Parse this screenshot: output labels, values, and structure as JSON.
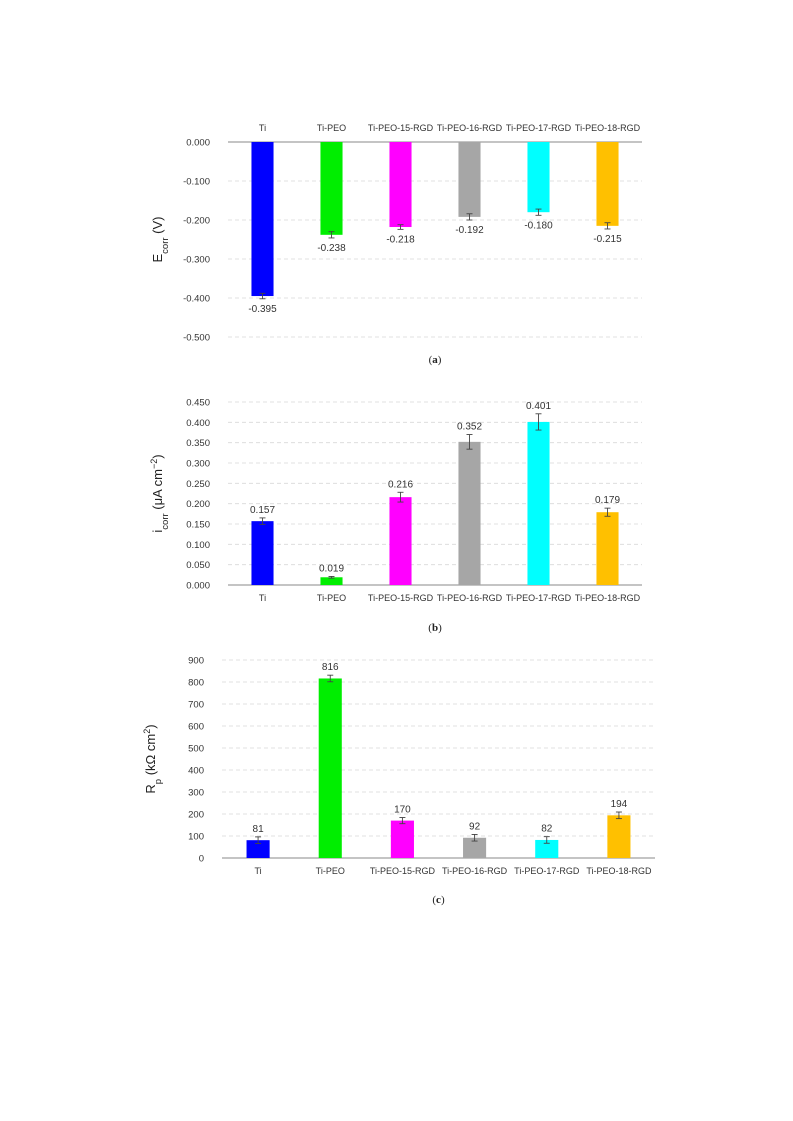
{
  "chart_data": [
    {
      "type": "bar",
      "panel": "a",
      "caption_letter": "a",
      "categories": [
        "Ti",
        "Ti-PEO",
        "Ti-PEO-15-RGD",
        "Ti-PEO-16-RGD",
        "Ti-PEO-17-RGD",
        "Ti-PEO-18-RGD"
      ],
      "values": [
        -0.395,
        -0.238,
        -0.218,
        -0.192,
        -0.18,
        -0.215
      ],
      "value_labels": [
        "-0.395",
        "-0.238",
        "-0.218",
        "-0.192",
        "-0.180",
        "-0.215"
      ],
      "errors": [
        0.007,
        0.008,
        0.006,
        0.008,
        0.008,
        0.008
      ],
      "ylabel_main": "E",
      "ylabel_sub": "corr",
      "ylabel_tail": " (V)",
      "ylim": [
        -0.5,
        0
      ],
      "yticks": [
        0,
        -0.1,
        -0.2,
        -0.3,
        -0.4,
        -0.5
      ],
      "ytick_labels": [
        "0.000",
        "-0.100",
        "-0.200",
        "-0.300",
        "-0.400",
        "-0.500"
      ],
      "category_axis": "top",
      "grid": true
    },
    {
      "type": "bar",
      "panel": "b",
      "caption_letter": "b",
      "categories": [
        "Ti",
        "Ti-PEO",
        "Ti-PEO-15-RGD",
        "Ti-PEO-16-RGD",
        "Ti-PEO-17-RGD",
        "Ti-PEO-18-RGD"
      ],
      "values": [
        0.157,
        0.019,
        0.216,
        0.352,
        0.401,
        0.179
      ],
      "value_labels": [
        "0.157",
        "0.019",
        "0.216",
        "0.352",
        "0.401",
        "0.179"
      ],
      "errors": [
        0.008,
        0.002,
        0.012,
        0.018,
        0.02,
        0.01
      ],
      "ylabel_main": "i",
      "ylabel_sub": "corr",
      "ylabel_tail": " (μA cm",
      "ylabel_sup": "−2",
      "ylabel_end": ")",
      "ylim": [
        0,
        0.45
      ],
      "yticks": [
        0,
        0.05,
        0.1,
        0.15,
        0.2,
        0.25,
        0.3,
        0.35,
        0.4,
        0.45
      ],
      "ytick_labels": [
        "0.000",
        "0.050",
        "0.100",
        "0.150",
        "0.200",
        "0.250",
        "0.300",
        "0.350",
        "0.400",
        "0.450"
      ],
      "category_axis": "bottom",
      "grid": true
    },
    {
      "type": "bar",
      "panel": "c",
      "caption_letter": "c",
      "categories": [
        "Ti",
        "Ti-PEO",
        "Ti-PEO-15-RGD",
        "Ti-PEO-16-RGD",
        "Ti-PEO-17-RGD",
        "Ti-PEO-18-RGD"
      ],
      "values": [
        81,
        816,
        170,
        92,
        82,
        194
      ],
      "value_labels": [
        "81",
        "816",
        "170",
        "92",
        "82",
        "194"
      ],
      "errors": [
        15,
        15,
        14,
        15,
        15,
        15
      ],
      "ylabel_main": "R",
      "ylabel_sub": "p",
      "ylabel_tail": " (kΩ cm",
      "ylabel_sup": "2",
      "ylabel_end": ")",
      "ylim": [
        0,
        900
      ],
      "yticks": [
        0,
        100,
        200,
        300,
        400,
        500,
        600,
        700,
        800,
        900
      ],
      "ytick_labels": [
        "0",
        "100",
        "200",
        "300",
        "400",
        "500",
        "600",
        "700",
        "800",
        "900"
      ],
      "category_axis": "bottom",
      "grid": true
    }
  ],
  "colors": [
    "#0000ff",
    "#00ee00",
    "#ff00ff",
    "#a6a6a6",
    "#00ffff",
    "#ffc000"
  ]
}
